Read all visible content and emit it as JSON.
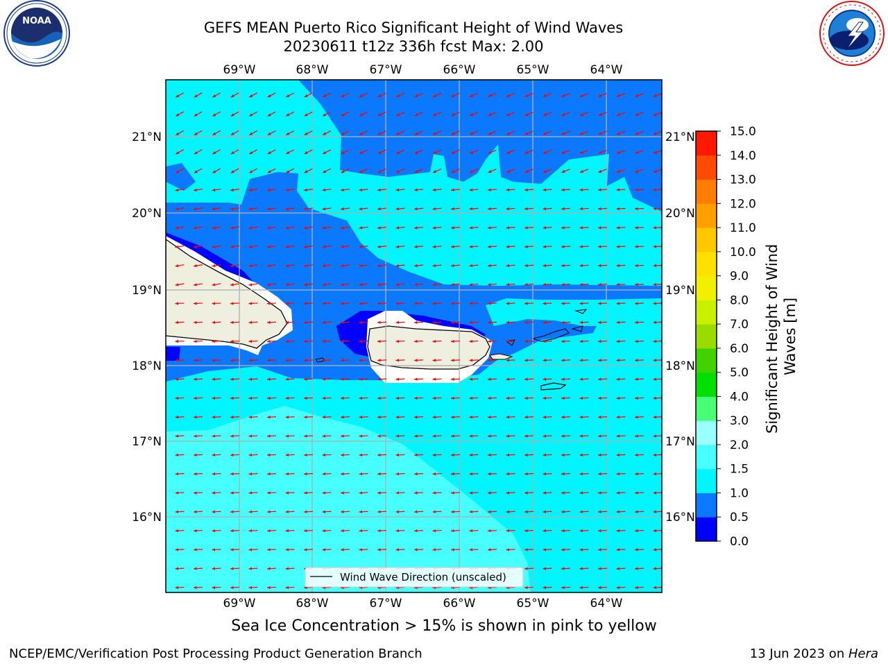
{
  "title": {
    "line1": "GEFS MEAN Puerto Rico Significant Height of Wind Waves",
    "line2": "20230611 t12z 336h fcst   Max: 2.00"
  },
  "logos": {
    "left": {
      "name": "noaa-logo",
      "text": "NOAA",
      "ring_text": "NATIONAL OCEANIC AND ATMOSPHERIC ADMINISTRATION · U.S. DEPARTMENT OF COMMERCE"
    },
    "right": {
      "name": "nws-logo",
      "ring_text": "NATIONAL WEATHER SERVICE"
    }
  },
  "map": {
    "lon_ticks": [
      "69°W",
      "68°W",
      "67°W",
      "66°W",
      "65°W",
      "64°W"
    ],
    "lat_ticks": [
      "21°N",
      "20°N",
      "19°N",
      "18°N",
      "17°N",
      "16°N"
    ],
    "legend_label": "Wind Wave Direction (unscaled)",
    "colors": {
      "ocean_low": "#0000ff",
      "ocean_0_5": "#0a78ff",
      "ocean_1_0": "#00f5ff",
      "ocean_1_5": "#48ffff",
      "ocean_2_0": "#9affff",
      "land": "#efefdf",
      "arrow": "#ff0000",
      "grid": "#b0b0b0"
    }
  },
  "colorbar": {
    "label": "Significant Height of Wind Waves [m]",
    "ticks": [
      "0.0",
      "0.5",
      "1.0",
      "1.5",
      "2.0",
      "3.0",
      "4.0",
      "5.0",
      "6.0",
      "7.0",
      "8.0",
      "9.0",
      "10.0",
      "11.0",
      "12.0",
      "13.0",
      "14.0",
      "15.0"
    ],
    "colors": [
      "#0000ff",
      "#0a78ff",
      "#00f5ff",
      "#48ffff",
      "#9affff",
      "#48ff78",
      "#00e000",
      "#41d200",
      "#9bdc00",
      "#c8f000",
      "#f0f000",
      "#ffe100",
      "#ffc800",
      "#ffa000",
      "#ff7d00",
      "#ff4b00",
      "#ff1900"
    ]
  },
  "seaice_note": "Sea Ice Concentration > 15% is shown in pink to yellow",
  "footer": {
    "left": "NCEP/EMC/Verification Post Processing Product Generation Branch",
    "right_prefix": "13 Jun 2023 on ",
    "right_host": "Hera"
  }
}
